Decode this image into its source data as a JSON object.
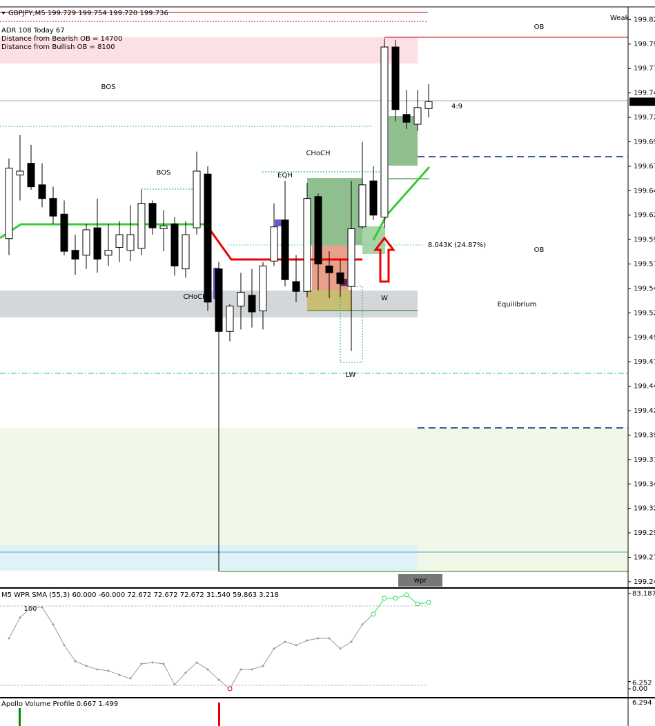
{
  "chart_data": {
    "type": "candlestick",
    "title": "GBPJPY,M5  199.729 199.754 199.720 199.736",
    "info": [
      "ADR 108  Today 67",
      "Distance from Bearish OB = 14700",
      "Distance from Bullish OB = 8100"
    ],
    "open": [
      199.596,
      199.661,
      199.673,
      199.651,
      199.637,
      199.621,
      199.584,
      199.579,
      199.607,
      199.579,
      199.587,
      199.584,
      199.586,
      199.632,
      199.606,
      199.611,
      199.565,
      199.607,
      199.662,
      199.565,
      199.501,
      199.527,
      199.538,
      199.522,
      199.573,
      199.615,
      199.552,
      199.542,
      199.639,
      199.568,
      199.561,
      199.547,
      199.608,
      199.655,
      199.618,
      199.792,
      199.723,
      199.713,
      199.729
    ],
    "high": [
      199.678,
      199.702,
      199.692,
      199.673,
      199.649,
      199.635,
      199.6,
      199.611,
      199.637,
      199.611,
      199.614,
      199.63,
      199.646,
      199.635,
      199.625,
      199.618,
      199.614,
      199.685,
      199.67,
      199.572,
      199.529,
      199.561,
      199.565,
      199.572,
      199.632,
      199.655,
      199.579,
      199.653,
      199.642,
      199.583,
      199.575,
      199.655,
      199.695,
      199.67,
      199.801,
      199.799,
      199.748,
      199.748,
      199.754
    ],
    "low": [
      199.579,
      199.635,
      199.646,
      199.628,
      199.611,
      199.579,
      199.559,
      199.565,
      199.561,
      199.568,
      199.572,
      199.573,
      199.579,
      199.6,
      199.583,
      199.558,
      199.556,
      199.6,
      199.522,
      199.494,
      199.491,
      199.503,
      199.505,
      199.503,
      199.568,
      199.547,
      199.531,
      199.536,
      199.543,
      199.535,
      199.536,
      199.481,
      199.606,
      199.615,
      199.607,
      199.716,
      199.708,
      199.706,
      199.72
    ],
    "close": [
      199.668,
      199.665,
      199.649,
      199.637,
      199.619,
      199.583,
      199.575,
      199.605,
      199.575,
      199.584,
      199.6,
      199.6,
      199.632,
      199.607,
      199.609,
      199.568,
      199.6,
      199.665,
      199.531,
      199.501,
      199.527,
      199.541,
      199.521,
      199.568,
      199.608,
      199.554,
      199.542,
      199.637,
      199.57,
      199.561,
      199.55,
      199.606,
      199.651,
      199.62,
      199.792,
      199.728,
      199.715,
      199.73,
      199.736
    ],
    "ylim": [
      199.24,
      199.833
    ],
    "yticks": [
      {
        "value": 199.82,
        "label": "199.820"
      },
      {
        "value": 199.795,
        "label": "199.795"
      },
      {
        "value": 199.77,
        "label": "199.770"
      },
      {
        "value": 199.745,
        "label": "199.745"
      },
      {
        "value": 199.72,
        "label": "199.720"
      },
      {
        "value": 199.695,
        "label": "199.695"
      },
      {
        "value": 199.67,
        "label": "199.670"
      },
      {
        "value": 199.645,
        "label": "199.645"
      },
      {
        "value": 199.62,
        "label": "199.620"
      },
      {
        "value": 199.595,
        "label": "199.595"
      },
      {
        "value": 199.57,
        "label": "199.570"
      },
      {
        "value": 199.545,
        "label": "199.545"
      },
      {
        "value": 199.52,
        "label": "199.520"
      },
      {
        "value": 199.495,
        "label": "199.495"
      },
      {
        "value": 199.47,
        "label": "199.470"
      },
      {
        "value": 199.445,
        "label": "199.445"
      },
      {
        "value": 199.42,
        "label": "199.420"
      },
      {
        "value": 199.395,
        "label": "199.395"
      },
      {
        "value": 199.37,
        "label": "199.370"
      },
      {
        "value": 199.345,
        "label": "199.345"
      },
      {
        "value": 199.32,
        "label": "199.320"
      },
      {
        "value": 199.295,
        "label": "199.295"
      },
      {
        "value": 199.27,
        "label": "199.270"
      },
      {
        "value": 199.245,
        "label": "199.245"
      }
    ],
    "last_price": {
      "value": 199.736,
      "label": "199.736"
    },
    "annotations": [
      "Weak",
      "OB",
      "OB",
      "4:9",
      "BOS",
      "BOS",
      "CHoCH",
      "CHoCH",
      "EQH",
      "W",
      "Equilibrium",
      "8.043K (24.87%)",
      "LW"
    ],
    "button": "wpr",
    "wpr": {
      "name": "M5 WPR  SMA (55,3) 60.000 -60.000 72.672 72.672 72.672 31.540 59.863 3.218",
      "values": [
        44.0,
        62.1,
        71.1,
        71.1,
        56.1,
        38.0,
        24.1,
        19.9,
        16.9,
        15.7,
        12.1,
        9.0,
        21.7,
        22.9,
        21.7,
        3.6,
        13.9,
        22.9,
        16.9,
        7.8,
        0,
        16.9,
        16.9,
        19.9,
        35.0,
        41.0,
        38.0,
        42.2,
        44.0,
        44.0,
        35.0,
        41.0,
        56.1,
        65.1,
        79.0,
        79.0,
        82.0,
        74.1,
        75.3
      ],
      "ylim": [
        0,
        100
      ],
      "yticks": [
        {
          "value": 83.187,
          "label": "83.187"
        },
        {
          "value": 0,
          "label": "0.00"
        },
        6.252
      ],
      "level_label": "100"
    },
    "volume": {
      "name": "Apollo Volume Profile 0.667 1.499",
      "scale_label": "6.294"
    }
  }
}
